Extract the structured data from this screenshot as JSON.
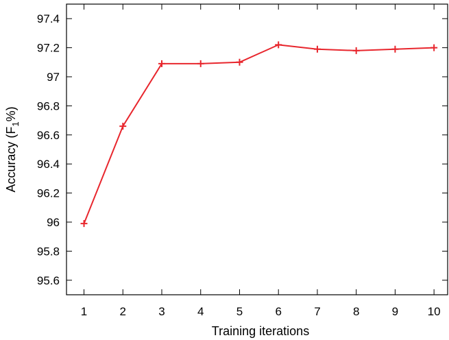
{
  "chart_data": {
    "type": "line",
    "title": "",
    "xlabel": "Training iterations",
    "ylabel": {
      "before": "Accuracy (F",
      "sub": "1",
      "after": "%)"
    },
    "x": [
      1,
      2,
      3,
      4,
      5,
      6,
      7,
      8,
      9,
      10
    ],
    "xticks": [
      "1",
      "2",
      "3",
      "4",
      "5",
      "6",
      "7",
      "8",
      "9",
      "10"
    ],
    "xlim": [
      0.55,
      10.35
    ],
    "yticks": [
      "95.6",
      "95.8",
      "96",
      "96.2",
      "96.4",
      "96.6",
      "96.8",
      "97",
      "97.2",
      "97.4"
    ],
    "ylim": [
      95.5,
      97.5
    ],
    "grid": false,
    "series": [
      {
        "values": [
          95.99,
          96.66,
          97.09,
          97.09,
          97.1,
          97.22,
          97.19,
          97.18,
          97.19,
          97.2
        ],
        "color": "#e8262d",
        "marker": "plus"
      }
    ]
  }
}
